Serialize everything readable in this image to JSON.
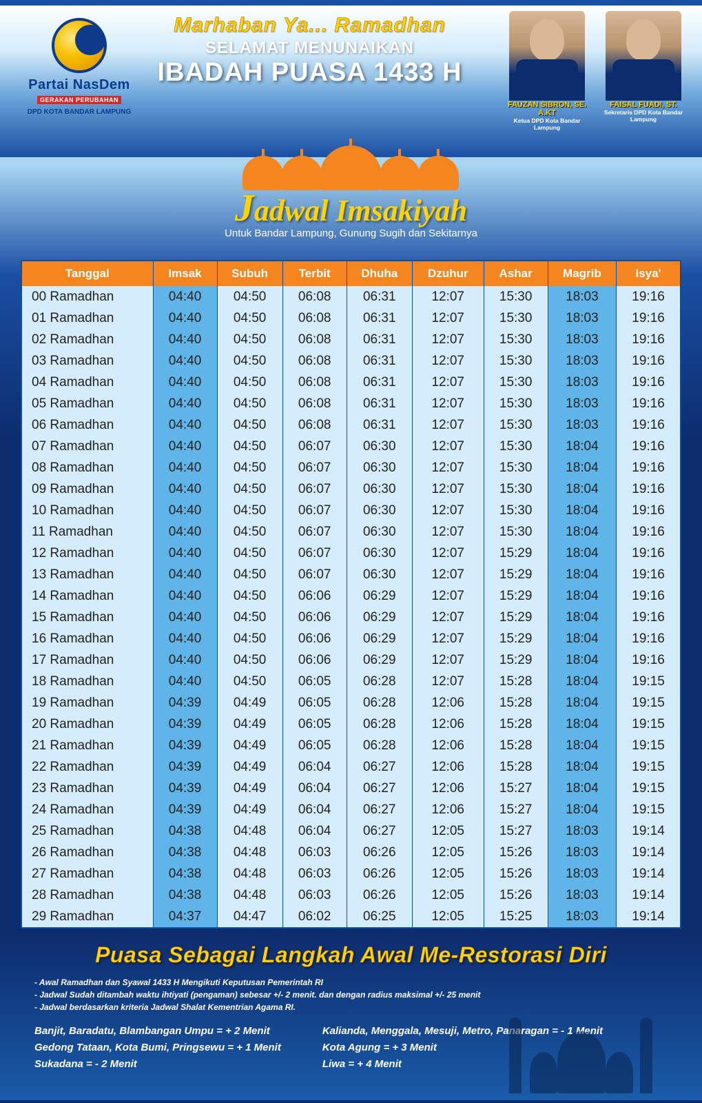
{
  "colors": {
    "orange": "#f5861f",
    "yellow": "#ffd400",
    "header_bg": "#d4ecfb",
    "highlight_bg": "#5fb4e8",
    "border": "#0a4fa3",
    "dark_blue": "#0d2c6e"
  },
  "logo": {
    "title": "Partai NasDem",
    "subtitle": "GERAKAN PERUBAHAN",
    "dpd": "DPD KOTA BANDAR LAMPUNG"
  },
  "headline": {
    "line1": "Marhaban Ya... Ramadhan",
    "line2": "SELAMAT MENUNAIKAN",
    "line3": "IBADAH PUASA 1433 H"
  },
  "people": [
    {
      "name": "FAUZAN SIBRON, SE. A.KT",
      "title": "Ketua DPD Kota Bandar Lampung"
    },
    {
      "name": "FAISAL FUADI, ST.",
      "title": "Sekretaris DPD Kota Bandar Lampung"
    }
  ],
  "banner": {
    "title_cap": "J",
    "title_rest": "adwal Imsakiyah",
    "subtitle": "Untuk Bandar Lampung, Gunung Sugih dan Sekitarnya"
  },
  "table": {
    "columns": [
      "Tanggal",
      "Imsak",
      "Subuh",
      "Terbit",
      "Dhuha",
      "Dzuhur",
      "Ashar",
      "Magrib",
      "Isya'"
    ],
    "highlight_cols": [
      1,
      7
    ],
    "rows": [
      [
        "00 Ramadhan",
        "04:40",
        "04:50",
        "06:08",
        "06:31",
        "12:07",
        "15:30",
        "18:03",
        "19:16"
      ],
      [
        "01 Ramadhan",
        "04:40",
        "04:50",
        "06:08",
        "06:31",
        "12:07",
        "15:30",
        "18:03",
        "19:16"
      ],
      [
        "02 Ramadhan",
        "04:40",
        "04:50",
        "06:08",
        "06:31",
        "12:07",
        "15:30",
        "18:03",
        "19:16"
      ],
      [
        "03 Ramadhan",
        "04:40",
        "04:50",
        "06:08",
        "06:31",
        "12:07",
        "15:30",
        "18:03",
        "19:16"
      ],
      [
        "04 Ramadhan",
        "04:40",
        "04:50",
        "06:08",
        "06:31",
        "12:07",
        "15:30",
        "18:03",
        "19:16"
      ],
      [
        "05 Ramadhan",
        "04:40",
        "04:50",
        "06:08",
        "06:31",
        "12:07",
        "15:30",
        "18:03",
        "19:16"
      ],
      [
        "06 Ramadhan",
        "04:40",
        "04:50",
        "06:08",
        "06:31",
        "12:07",
        "15:30",
        "18:03",
        "19:16"
      ],
      [
        "07 Ramadhan",
        "04:40",
        "04:50",
        "06:07",
        "06:30",
        "12:07",
        "15:30",
        "18:04",
        "19:16"
      ],
      [
        "08 Ramadhan",
        "04:40",
        "04:50",
        "06:07",
        "06:30",
        "12:07",
        "15:30",
        "18:04",
        "19:16"
      ],
      [
        "09 Ramadhan",
        "04:40",
        "04:50",
        "06:07",
        "06:30",
        "12:07",
        "15:30",
        "18:04",
        "19:16"
      ],
      [
        "10 Ramadhan",
        "04:40",
        "04:50",
        "06:07",
        "06:30",
        "12:07",
        "15:30",
        "18:04",
        "19:16"
      ],
      [
        "11 Ramadhan",
        "04:40",
        "04:50",
        "06:07",
        "06:30",
        "12:07",
        "15:30",
        "18:04",
        "19:16"
      ],
      [
        "12 Ramadhan",
        "04:40",
        "04:50",
        "06:07",
        "06:30",
        "12:07",
        "15:29",
        "18:04",
        "19:16"
      ],
      [
        "13 Ramadhan",
        "04:40",
        "04:50",
        "06:07",
        "06:30",
        "12:07",
        "15:29",
        "18:04",
        "19:16"
      ],
      [
        "14 Ramadhan",
        "04:40",
        "04:50",
        "06:06",
        "06:29",
        "12:07",
        "15:29",
        "18:04",
        "19:16"
      ],
      [
        "15 Ramadhan",
        "04:40",
        "04:50",
        "06:06",
        "06:29",
        "12:07",
        "15:29",
        "18:04",
        "19:16"
      ],
      [
        "16 Ramadhan",
        "04:40",
        "04:50",
        "06:06",
        "06:29",
        "12:07",
        "15:29",
        "18:04",
        "19:16"
      ],
      [
        "17 Ramadhan",
        "04:40",
        "04:50",
        "06:06",
        "06:29",
        "12:07",
        "15:29",
        "18:04",
        "19:16"
      ],
      [
        "18 Ramadhan",
        "04:40",
        "04:50",
        "06:05",
        "06:28",
        "12:07",
        "15:28",
        "18:04",
        "19:15"
      ],
      [
        "19 Ramadhan",
        "04:39",
        "04:49",
        "06:05",
        "06:28",
        "12:06",
        "15:28",
        "18:04",
        "19:15"
      ],
      [
        "20 Ramadhan",
        "04:39",
        "04:49",
        "06:05",
        "06:28",
        "12:06",
        "15:28",
        "18:04",
        "19:15"
      ],
      [
        "21 Ramadhan",
        "04:39",
        "04:49",
        "06:05",
        "06:28",
        "12:06",
        "15:28",
        "18:04",
        "19:15"
      ],
      [
        "22 Ramadhan",
        "04:39",
        "04:49",
        "06:04",
        "06:27",
        "12:06",
        "15:28",
        "18:04",
        "19:15"
      ],
      [
        "23 Ramadhan",
        "04:39",
        "04:49",
        "06:04",
        "06:27",
        "12:06",
        "15:27",
        "18:04",
        "19:15"
      ],
      [
        "24 Ramadhan",
        "04:39",
        "04:49",
        "06:04",
        "06:27",
        "12:06",
        "15:27",
        "18:04",
        "19:15"
      ],
      [
        "25 Ramadhan",
        "04:38",
        "04:48",
        "06:04",
        "06:27",
        "12:05",
        "15:27",
        "18:03",
        "19:14"
      ],
      [
        "26 Ramadhan",
        "04:38",
        "04:48",
        "06:03",
        "06:26",
        "12:05",
        "15:26",
        "18:03",
        "19:14"
      ],
      [
        "27 Ramadhan",
        "04:38",
        "04:48",
        "06:03",
        "06:26",
        "12:05",
        "15:26",
        "18:03",
        "19:14"
      ],
      [
        "28 Ramadhan",
        "04:38",
        "04:48",
        "06:03",
        "06:26",
        "12:05",
        "15:26",
        "18:03",
        "19:14"
      ],
      [
        "29 Ramadhan",
        "04:37",
        "04:47",
        "06:02",
        "06:25",
        "12:05",
        "15:25",
        "18:03",
        "19:14"
      ]
    ]
  },
  "footer": {
    "tagline": "Puasa Sebagai Langkah Awal Me-Restorasi Diri",
    "notes": [
      "- Awal Ramadhan dan Syawal 1433 H Mengikuti Keputusan Pemerintah RI",
      "- Jadwal Sudah ditambah waktu ihtiyati (pengaman) sebesar +/- 2 menit. dan dengan radius maksimal +/- 25 menit",
      "- Jadwal berdasarkan kriteria Jadwal Shalat Kementrian Agama RI."
    ],
    "offsets_left": [
      "Banjit, Baradatu, Blambangan Umpu = + 2 Menit",
      "Gedong Tataan, Kota Bumi, Pringsewu = + 1 Menit",
      "Sukadana = - 2 Menit"
    ],
    "offsets_right": [
      "Kalianda, Menggala, Mesuji, Metro, Panaragan = - 1 Menit",
      "Kota Agung = + 3 Menit",
      "Liwa = + 4 Menit"
    ]
  }
}
